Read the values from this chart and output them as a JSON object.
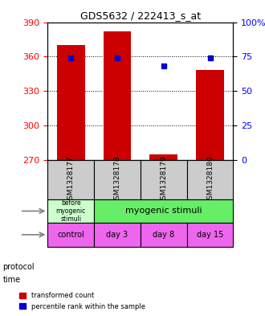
{
  "title": "GDS5632 / 222413_s_at",
  "samples": [
    "GSM1328177",
    "GSM1328178",
    "GSM1328179",
    "GSM1328180"
  ],
  "bar_values": [
    370,
    382,
    275,
    348
  ],
  "bar_base": 270,
  "percentile_values": [
    74,
    74,
    68,
    74
  ],
  "percentile_base": 0,
  "left_yticks": [
    270,
    300,
    330,
    360,
    390
  ],
  "right_yticks": [
    0,
    25,
    50,
    75,
    100
  ],
  "right_ylabels": [
    "0",
    "25",
    "50",
    "75",
    "100%"
  ],
  "ylim_left": [
    270,
    390
  ],
  "ylim_right": [
    0,
    100
  ],
  "bar_color": "#cc0000",
  "percentile_color": "#0000cc",
  "protocol_labels": [
    "before\nmyogenic\nstimuli",
    "myogenic stimuli"
  ],
  "protocol_colors": [
    "#ccffcc",
    "#66ee66"
  ],
  "time_labels": [
    "control",
    "day 3",
    "day 8",
    "day 15"
  ],
  "time_color": "#ee66ee",
  "sample_bg_color": "#cccccc",
  "bar_width": 0.6
}
